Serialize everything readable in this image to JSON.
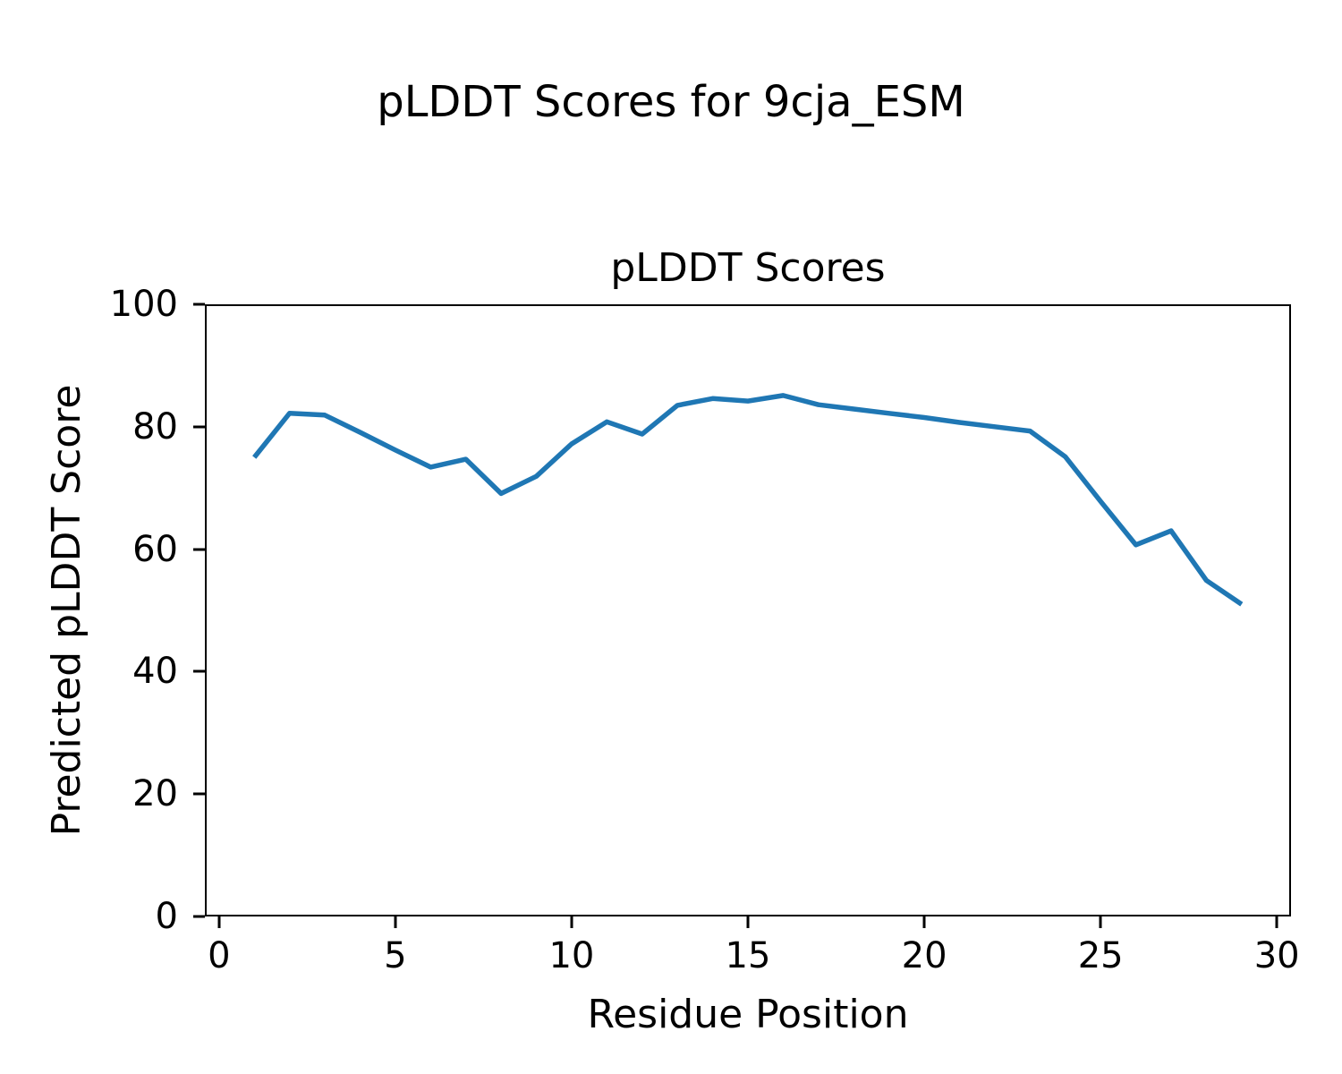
{
  "figure": {
    "background": "#ffffff",
    "text_color": "#000000"
  },
  "chart_data": {
    "type": "line",
    "suptitle": "pLDDT Scores for 9cja_ESM",
    "title": "pLDDT Scores",
    "xlabel": "Residue Position",
    "ylabel": "Predicted pLDDT Score",
    "x": [
      1,
      2,
      3,
      4,
      5,
      6,
      7,
      8,
      9,
      10,
      11,
      12,
      13,
      14,
      15,
      16,
      17,
      18,
      19,
      20,
      21,
      22,
      23,
      24,
      25,
      26,
      27,
      28,
      29
    ],
    "y": [
      75.0,
      82.2,
      81.9,
      79.1,
      76.2,
      73.4,
      74.7,
      69.1,
      71.9,
      77.2,
      80.8,
      78.8,
      83.5,
      84.6,
      84.2,
      85.1,
      83.6,
      82.9,
      82.2,
      81.5,
      80.7,
      80.0,
      79.3,
      75.1,
      67.8,
      60.7,
      63.0,
      54.9,
      51.0
    ],
    "xlim": [
      -0.4,
      30.4
    ],
    "ylim": [
      0,
      100
    ],
    "xticks": [
      0,
      5,
      10,
      15,
      20,
      25,
      30
    ],
    "yticks": [
      0,
      20,
      40,
      60,
      80,
      100
    ],
    "grid": false,
    "legend": "none",
    "line_color": "#1f77b4",
    "line_width": 5.5,
    "frame_color": "#000000"
  }
}
